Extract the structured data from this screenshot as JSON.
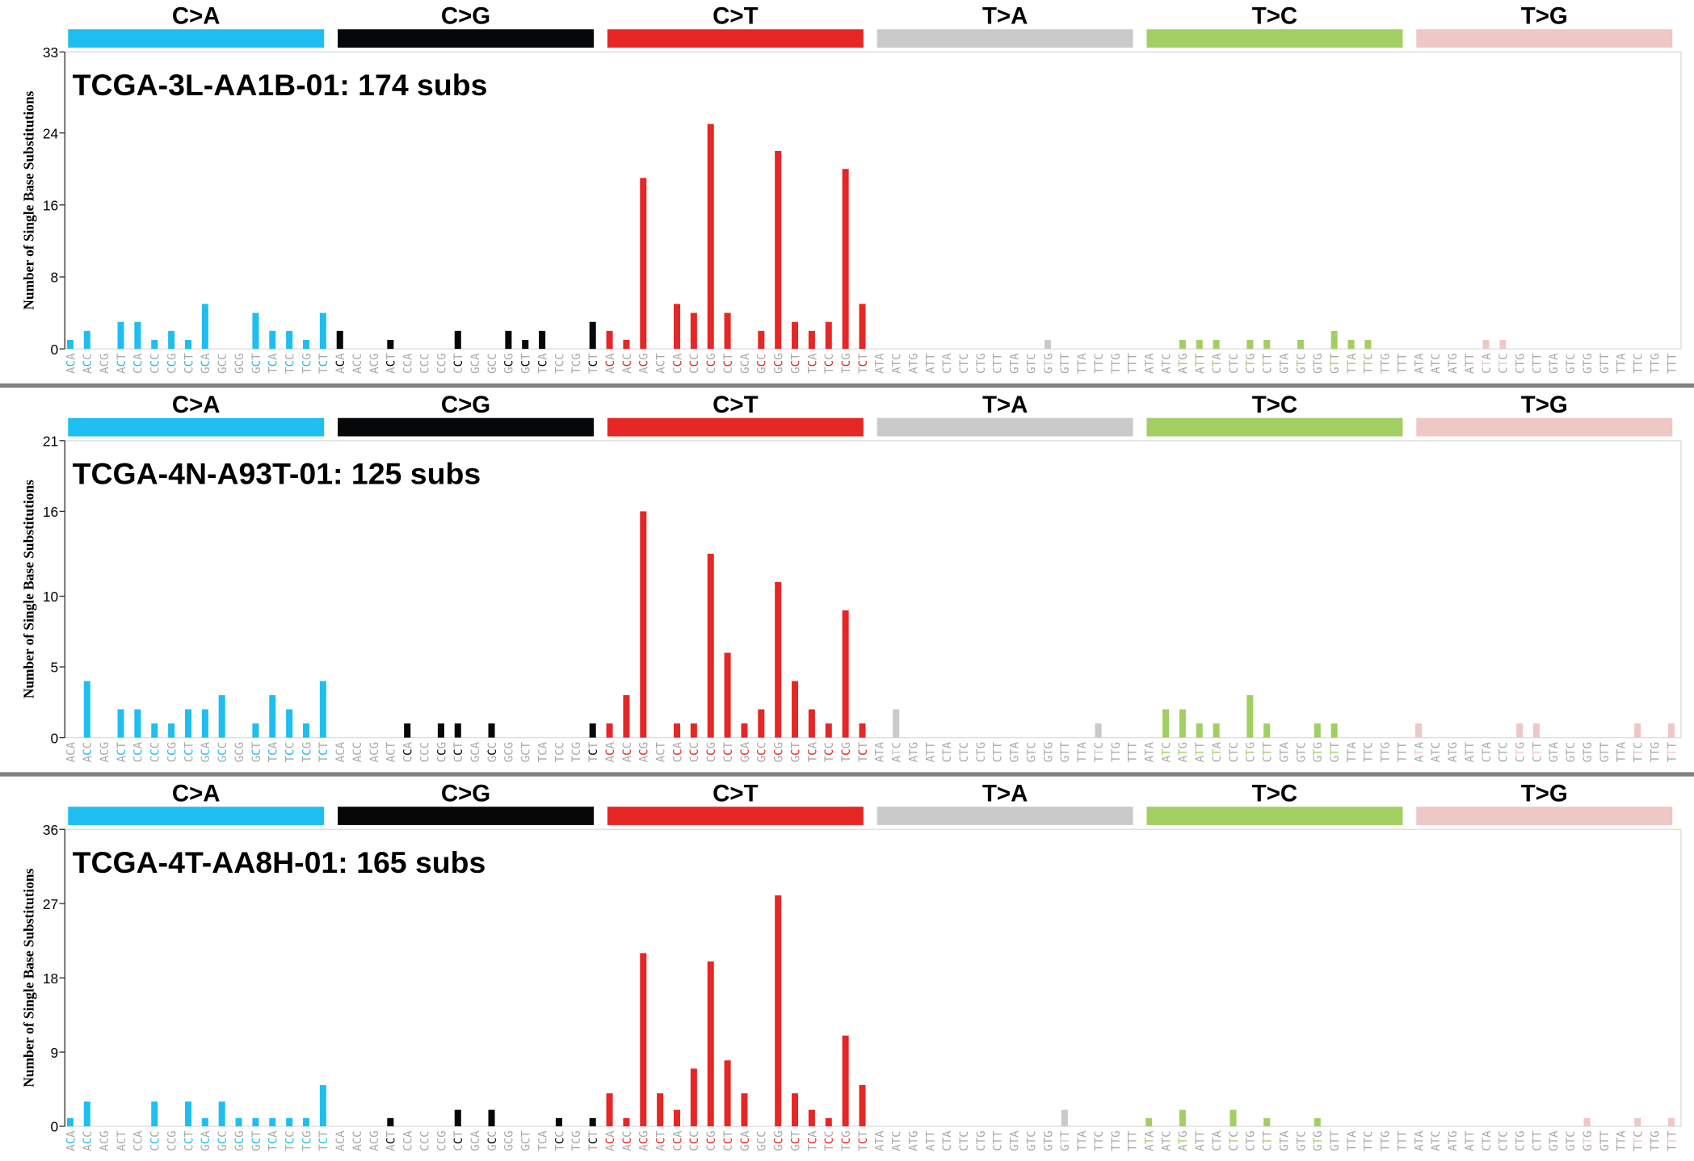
{
  "chart_data": [
    {
      "type": "bar",
      "title": "TCGA-3L-AA1B-01: 174 subs",
      "ylabel": "Number of Single Base Substitutions",
      "classes": [
        {
          "name": "C>A",
          "color": "#1ebff0"
        },
        {
          "name": "C>G",
          "color": "#050708"
        },
        {
          "name": "C>T",
          "color": "#e62725"
        },
        {
          "name": "T>A",
          "color": "#cbcacb"
        },
        {
          "name": "T>C",
          "color": "#a1cf64"
        },
        {
          "name": "T>G",
          "color": "#edc8c5"
        }
      ],
      "categories": [
        "ACA",
        "ACC",
        "ACG",
        "ACT",
        "CCA",
        "CCC",
        "CCG",
        "CCT",
        "GCA",
        "GCC",
        "GCG",
        "GCT",
        "TCA",
        "TCC",
        "TCG",
        "TCT",
        "ACA",
        "ACC",
        "ACG",
        "ACT",
        "CCA",
        "CCC",
        "CCG",
        "CCT",
        "GCA",
        "GCC",
        "GCG",
        "GCT",
        "TCA",
        "TCC",
        "TCG",
        "TCT",
        "ACA",
        "ACC",
        "ACG",
        "ACT",
        "CCA",
        "CCC",
        "CCG",
        "CCT",
        "GCA",
        "GCC",
        "GCG",
        "GCT",
        "TCA",
        "TCC",
        "TCG",
        "TCT",
        "ATA",
        "ATC",
        "ATG",
        "ATT",
        "CTA",
        "CTC",
        "CTG",
        "CTT",
        "GTA",
        "GTC",
        "GTG",
        "GTT",
        "TTA",
        "TTC",
        "TTG",
        "TTT",
        "ATA",
        "ATC",
        "ATG",
        "ATT",
        "CTA",
        "CTC",
        "CTG",
        "CTT",
        "GTA",
        "GTC",
        "GTG",
        "GTT",
        "TTA",
        "TTC",
        "TTG",
        "TTT",
        "ATA",
        "ATC",
        "ATG",
        "ATT",
        "CTA",
        "CTC",
        "CTG",
        "CTT",
        "GTA",
        "GTC",
        "GTG",
        "GTT",
        "TTA",
        "TTC",
        "TTG",
        "TTT"
      ],
      "values": [
        1,
        2,
        0,
        3,
        3,
        1,
        2,
        1,
        5,
        0,
        0,
        4,
        2,
        2,
        1,
        4,
        2,
        0,
        0,
        1,
        0,
        0,
        0,
        2,
        0,
        0,
        2,
        1,
        2,
        0,
        0,
        3,
        2,
        1,
        19,
        0,
        5,
        4,
        25,
        4,
        0,
        2,
        22,
        3,
        2,
        3,
        20,
        5,
        0,
        0,
        0,
        0,
        0,
        0,
        0,
        0,
        0,
        0,
        1,
        0,
        0,
        0,
        0,
        0,
        0,
        0,
        1,
        1,
        1,
        0,
        1,
        1,
        0,
        1,
        0,
        2,
        1,
        1,
        0,
        0,
        0,
        0,
        0,
        0,
        1,
        1,
        0,
        0,
        0,
        0,
        0,
        0,
        0,
        0,
        0,
        0
      ],
      "ylim": [
        0,
        33
      ],
      "yticks": [
        0,
        8,
        16,
        24,
        33
      ]
    },
    {
      "type": "bar",
      "title": "TCGA-4N-A93T-01: 125 subs",
      "ylabel": "Number of Single Base Substitutions",
      "classes": [
        {
          "name": "C>A",
          "color": "#1ebff0"
        },
        {
          "name": "C>G",
          "color": "#050708"
        },
        {
          "name": "C>T",
          "color": "#e62725"
        },
        {
          "name": "T>A",
          "color": "#cbcacb"
        },
        {
          "name": "T>C",
          "color": "#a1cf64"
        },
        {
          "name": "T>G",
          "color": "#edc8c5"
        }
      ],
      "categories": [
        "ACA",
        "ACC",
        "ACG",
        "ACT",
        "CCA",
        "CCC",
        "CCG",
        "CCT",
        "GCA",
        "GCC",
        "GCG",
        "GCT",
        "TCA",
        "TCC",
        "TCG",
        "TCT",
        "ACA",
        "ACC",
        "ACG",
        "ACT",
        "CCA",
        "CCC",
        "CCG",
        "CCT",
        "GCA",
        "GCC",
        "GCG",
        "GCT",
        "TCA",
        "TCC",
        "TCG",
        "TCT",
        "ACA",
        "ACC",
        "ACG",
        "ACT",
        "CCA",
        "CCC",
        "CCG",
        "CCT",
        "GCA",
        "GCC",
        "GCG",
        "GCT",
        "TCA",
        "TCC",
        "TCG",
        "TCT",
        "ATA",
        "ATC",
        "ATG",
        "ATT",
        "CTA",
        "CTC",
        "CTG",
        "CTT",
        "GTA",
        "GTC",
        "GTG",
        "GTT",
        "TTA",
        "TTC",
        "TTG",
        "TTT",
        "ATA",
        "ATC",
        "ATG",
        "ATT",
        "CTA",
        "CTC",
        "CTG",
        "CTT",
        "GTA",
        "GTC",
        "GTG",
        "GTT",
        "TTA",
        "TTC",
        "TTG",
        "TTT",
        "ATA",
        "ATC",
        "ATG",
        "ATT",
        "CTA",
        "CTC",
        "CTG",
        "CTT",
        "GTA",
        "GTC",
        "GTG",
        "GTT",
        "TTA",
        "TTC",
        "TTG",
        "TTT"
      ],
      "values": [
        0,
        4,
        0,
        2,
        2,
        1,
        1,
        2,
        2,
        3,
        0,
        1,
        3,
        2,
        1,
        4,
        0,
        0,
        0,
        0,
        1,
        0,
        1,
        1,
        0,
        1,
        0,
        0,
        0,
        0,
        0,
        1,
        1,
        3,
        16,
        0,
        1,
        1,
        13,
        6,
        1,
        2,
        11,
        4,
        2,
        1,
        9,
        1,
        0,
        2,
        0,
        0,
        0,
        0,
        0,
        0,
        0,
        0,
        0,
        0,
        0,
        1,
        0,
        0,
        0,
        2,
        2,
        1,
        1,
        0,
        3,
        1,
        0,
        0,
        1,
        1,
        0,
        0,
        0,
        0,
        1,
        0,
        0,
        0,
        0,
        0,
        1,
        1,
        0,
        0,
        0,
        0,
        0,
        1,
        0,
        1
      ],
      "ylim": [
        0,
        21
      ],
      "yticks": [
        0,
        5,
        10,
        16,
        21
      ]
    },
    {
      "type": "bar",
      "title": "TCGA-4T-AA8H-01: 165 subs",
      "ylabel": "Number of Single Base Substitutions",
      "classes": [
        {
          "name": "C>A",
          "color": "#1ebff0"
        },
        {
          "name": "C>G",
          "color": "#050708"
        },
        {
          "name": "C>T",
          "color": "#e62725"
        },
        {
          "name": "T>A",
          "color": "#cbcacb"
        },
        {
          "name": "T>C",
          "color": "#a1cf64"
        },
        {
          "name": "T>G",
          "color": "#edc8c5"
        }
      ],
      "categories": [
        "ACA",
        "ACC",
        "ACG",
        "ACT",
        "CCA",
        "CCC",
        "CCG",
        "CCT",
        "GCA",
        "GCC",
        "GCG",
        "GCT",
        "TCA",
        "TCC",
        "TCG",
        "TCT",
        "ACA",
        "ACC",
        "ACG",
        "ACT",
        "CCA",
        "CCC",
        "CCG",
        "CCT",
        "GCA",
        "GCC",
        "GCG",
        "GCT",
        "TCA",
        "TCC",
        "TCG",
        "TCT",
        "ACA",
        "ACC",
        "ACG",
        "ACT",
        "CCA",
        "CCC",
        "CCG",
        "CCT",
        "GCA",
        "GCC",
        "GCG",
        "GCT",
        "TCA",
        "TCC",
        "TCG",
        "TCT",
        "ATA",
        "ATC",
        "ATG",
        "ATT",
        "CTA",
        "CTC",
        "CTG",
        "CTT",
        "GTA",
        "GTC",
        "GTG",
        "GTT",
        "TTA",
        "TTC",
        "TTG",
        "TTT",
        "ATA",
        "ATC",
        "ATG",
        "ATT",
        "CTA",
        "CTC",
        "CTG",
        "CTT",
        "GTA",
        "GTC",
        "GTG",
        "GTT",
        "TTA",
        "TTC",
        "TTG",
        "TTT",
        "ATA",
        "ATC",
        "ATG",
        "ATT",
        "CTA",
        "CTC",
        "CTG",
        "CTT",
        "GTA",
        "GTC",
        "GTG",
        "GTT",
        "TTA",
        "TTC",
        "TTG",
        "TTT"
      ],
      "values": [
        1,
        3,
        0,
        0,
        0,
        3,
        0,
        3,
        1,
        3,
        1,
        1,
        1,
        1,
        1,
        5,
        0,
        0,
        0,
        1,
        0,
        0,
        0,
        2,
        0,
        2,
        0,
        0,
        0,
        1,
        0,
        1,
        4,
        1,
        21,
        4,
        2,
        7,
        20,
        8,
        4,
        0,
        28,
        4,
        2,
        1,
        11,
        5,
        0,
        0,
        0,
        0,
        0,
        0,
        0,
        0,
        0,
        0,
        0,
        2,
        0,
        0,
        0,
        0,
        1,
        0,
        2,
        0,
        0,
        2,
        0,
        1,
        0,
        0,
        1,
        0,
        0,
        0,
        0,
        0,
        0,
        0,
        0,
        0,
        0,
        0,
        0,
        0,
        0,
        0,
        1,
        0,
        0,
        1,
        0,
        1
      ],
      "ylim": [
        0,
        36
      ],
      "yticks": [
        0,
        9,
        18,
        27,
        36
      ]
    }
  ]
}
